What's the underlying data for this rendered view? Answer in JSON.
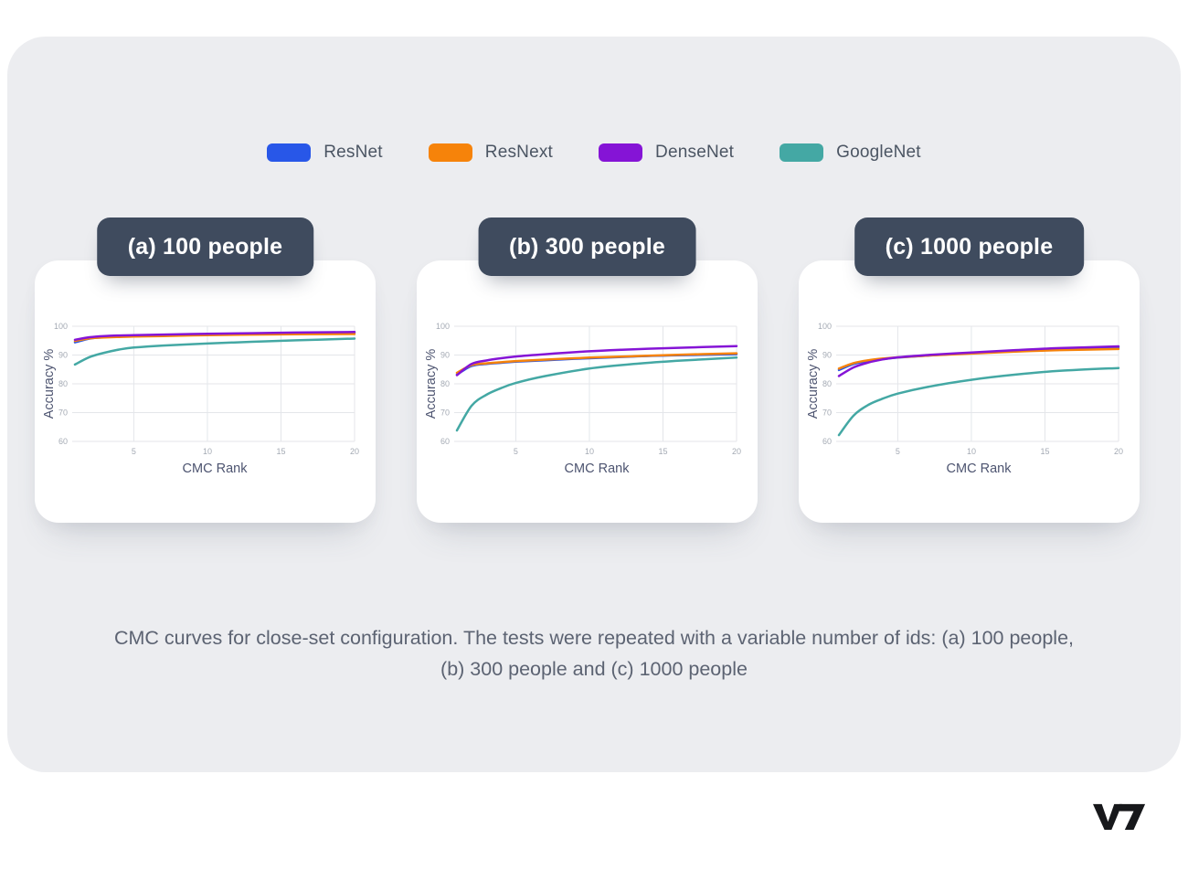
{
  "page": {
    "background": "#ffffff",
    "panel_background": "#ecedf0"
  },
  "legend": {
    "items": [
      {
        "label": "ResNet",
        "color": "#2857e8"
      },
      {
        "label": "ResNext",
        "color": "#f6830a"
      },
      {
        "label": "DenseNet",
        "color": "#8514d6"
      },
      {
        "label": "GoogleNet",
        "color": "#44a8a4"
      }
    ]
  },
  "caption": "CMC curves for close-set configuration. The tests were repeated with a variable number of ids: (a) 100 people, (b) 300 people and (c) 1000 people",
  "logo_text": "V7",
  "style": {
    "badge_bg": "#3f4b5e",
    "grid_color": "#e4e6ea",
    "tick_color": "#a4aab4",
    "axis_label_color": "#4d5470"
  },
  "chart_data": [
    {
      "type": "line",
      "badge": "(a) 100 people",
      "xlabel": "CMC Rank",
      "ylabel": "Accuracy %",
      "xlim": [
        1,
        20
      ],
      "ylim": [
        60,
        100
      ],
      "xticks": [
        5,
        10,
        15,
        20
      ],
      "yticks": [
        60,
        70,
        80,
        90,
        100
      ],
      "grid": true,
      "x": [
        1,
        2,
        3,
        4,
        5,
        7,
        10,
        13,
        16,
        20
      ],
      "series": [
        {
          "name": "ResNet",
          "color": "#2857e8",
          "values": [
            94.4,
            95.7,
            96.2,
            96.4,
            96.5,
            96.8,
            97.1,
            97.4,
            97.6,
            97.8
          ]
        },
        {
          "name": "ResNext",
          "color": "#f6830a",
          "values": [
            94.9,
            95.8,
            96.1,
            96.3,
            96.4,
            96.6,
            96.9,
            97.1,
            97.2,
            97.3
          ]
        },
        {
          "name": "DenseNet",
          "color": "#8514d6",
          "values": [
            95.3,
            96.2,
            96.6,
            96.8,
            96.9,
            97.1,
            97.4,
            97.6,
            97.8,
            98.0
          ]
        },
        {
          "name": "GoogleNet",
          "color": "#44a8a4",
          "values": [
            86.7,
            89.3,
            90.8,
            91.9,
            92.6,
            93.3,
            94.0,
            94.6,
            95.1,
            95.7
          ]
        }
      ]
    },
    {
      "type": "line",
      "badge": "(b) 300 people",
      "xlabel": "CMC Rank",
      "ylabel": "Accuracy %",
      "xlim": [
        1,
        20
      ],
      "ylim": [
        60,
        100
      ],
      "xticks": [
        5,
        10,
        15,
        20
      ],
      "yticks": [
        60,
        70,
        80,
        90,
        100
      ],
      "grid": true,
      "x": [
        1,
        2,
        3,
        4,
        5,
        7,
        10,
        13,
        16,
        20
      ],
      "series": [
        {
          "name": "ResNet",
          "color": "#2857e8",
          "values": [
            83.2,
            86.2,
            86.9,
            87.3,
            87.7,
            88.2,
            88.9,
            89.5,
            89.9,
            90.3
          ]
        },
        {
          "name": "ResNext",
          "color": "#f6830a",
          "values": [
            83.8,
            86.5,
            87.1,
            87.5,
            87.9,
            88.4,
            89.1,
            89.6,
            90.1,
            90.6
          ]
        },
        {
          "name": "DenseNet",
          "color": "#8514d6",
          "values": [
            83.0,
            86.9,
            88.1,
            88.9,
            89.5,
            90.3,
            91.3,
            92.0,
            92.5,
            93.1
          ]
        },
        {
          "name": "GoogleNet",
          "color": "#44a8a4",
          "values": [
            63.8,
            72.4,
            76.2,
            78.5,
            80.3,
            82.7,
            85.3,
            86.9,
            88.0,
            89.1
          ]
        }
      ]
    },
    {
      "type": "line",
      "badge": "(c) 1000 people",
      "xlabel": "CMC Rank",
      "ylabel": "Accuracy %",
      "xlim": [
        1,
        20
      ],
      "ylim": [
        60,
        100
      ],
      "xticks": [
        5,
        10,
        15,
        20
      ],
      "yticks": [
        60,
        70,
        80,
        90,
        100
      ],
      "grid": true,
      "x": [
        1,
        2,
        3,
        4,
        5,
        7,
        10,
        13,
        16,
        20
      ],
      "series": [
        {
          "name": "ResNet",
          "color": "#2857e8",
          "values": [
            84.8,
            86.9,
            87.9,
            88.6,
            89.1,
            89.8,
            90.7,
            91.4,
            92.0,
            92.7
          ]
        },
        {
          "name": "ResNext",
          "color": "#f6830a",
          "values": [
            85.3,
            87.2,
            88.2,
            88.8,
            89.2,
            89.8,
            90.5,
            91.2,
            91.7,
            92.1
          ]
        },
        {
          "name": "DenseNet",
          "color": "#8514d6",
          "values": [
            82.7,
            85.7,
            87.4,
            88.5,
            89.2,
            90.0,
            90.9,
            91.7,
            92.4,
            93.0
          ]
        },
        {
          "name": "GoogleNet",
          "color": "#44a8a4",
          "values": [
            62.2,
            69.0,
            72.7,
            74.9,
            76.6,
            78.9,
            81.4,
            83.2,
            84.5,
            85.5
          ]
        }
      ]
    }
  ]
}
